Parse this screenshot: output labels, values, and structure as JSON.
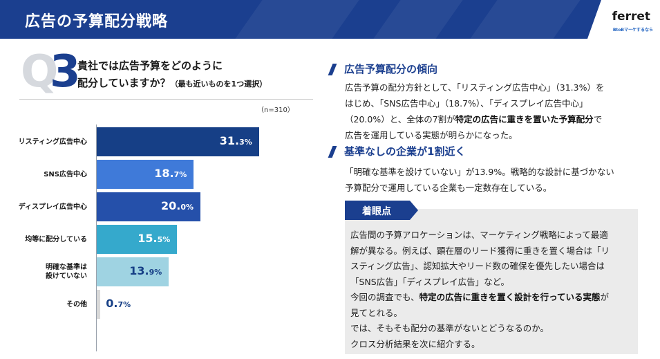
{
  "header": {
    "title": "広告の予算配分戦略",
    "logo": "ferret",
    "logo_tagline": "BtoBマーケするなら"
  },
  "question": {
    "number_prefix": "Q",
    "number": "3",
    "line1": "貴社では広告予算をどのように",
    "line2": "配分していますか？",
    "note": "（最も近いものを1つ選択）",
    "sample": "（n=310）"
  },
  "chart_data": {
    "type": "bar",
    "orientation": "horizontal",
    "categories": [
      "リスティング広告中心",
      "SNS広告中心",
      "ディスプレイ広告中心",
      "均等に配分している",
      "明確な基準は設けていない",
      "その他"
    ],
    "category_lines": [
      [
        "リスティング広告中心"
      ],
      [
        "SNS広告中心"
      ],
      [
        "ディスプレイ広告中心"
      ],
      [
        "均等に配分している"
      ],
      [
        "明確な基準は",
        "設けていない"
      ],
      [
        "その他"
      ]
    ],
    "values": [
      31.3,
      18.7,
      20.0,
      15.5,
      13.9,
      0.7
    ],
    "value_labels": [
      [
        "31.",
        "3%"
      ],
      [
        "18.",
        "7%"
      ],
      [
        "20.",
        "0%"
      ],
      [
        "15.",
        "5%"
      ],
      [
        "13.",
        "9%"
      ],
      [
        "0.",
        "7%"
      ]
    ],
    "colors": [
      "#163f86",
      "#3f7ad9",
      "#2550aa",
      "#35a9cc",
      "#9fd3e2",
      "#d9d9d9"
    ],
    "value_colors": [
      "#ffffff",
      "#ffffff",
      "#ffffff",
      "#ffffff",
      "#163f86",
      "#163f86"
    ],
    "xlim": [
      0,
      40
    ],
    "title": "",
    "xlabel": "",
    "ylabel": ""
  },
  "section1": {
    "heading": "広告予算配分の傾向",
    "line1": "広告予算の配分方針として、「リスティング広告中心」（31.3%）を",
    "line2": "はじめ、「SNS広告中心」（18.7%）、「ディスプレイ広告中心」",
    "line3_pre": "（20.0%）と、全体の7割が",
    "line3_bold": "特定の広告に重きを置いた予算配分",
    "line3_post": "で",
    "line4": "広告を運用している実態が明らかになった。"
  },
  "section2": {
    "heading": "基準なしの企業が1割近く",
    "line1": "「明確な基準を設けていない」が13.9%。戦略的な設計に基づかない",
    "line2": "予算配分で運用している企業も一定数存在している。"
  },
  "callout": {
    "tag": "着眼点",
    "line1": "広告間の予算アロケーションは、マーケティング戦略によって最適",
    "line2": "解が異なる。例えば、顕在層のリード獲得に重きを置く場合は「リ",
    "line3": "スティング広告」、認知拡大やリード数の確保を優先したい場合は",
    "line4": "「SNS広告」「ディスプレイ広告」など。",
    "line5": "今回の調査でも、",
    "line5_bold": "特定の広告に重きを置く設計を行っている実態",
    "line5_post": "が",
    "line6": "見てとれる。",
    "line7": "では、そもそも配分の基準がないとどうなるのか。",
    "line8": "クロス分析結果を次に紹介する。"
  }
}
